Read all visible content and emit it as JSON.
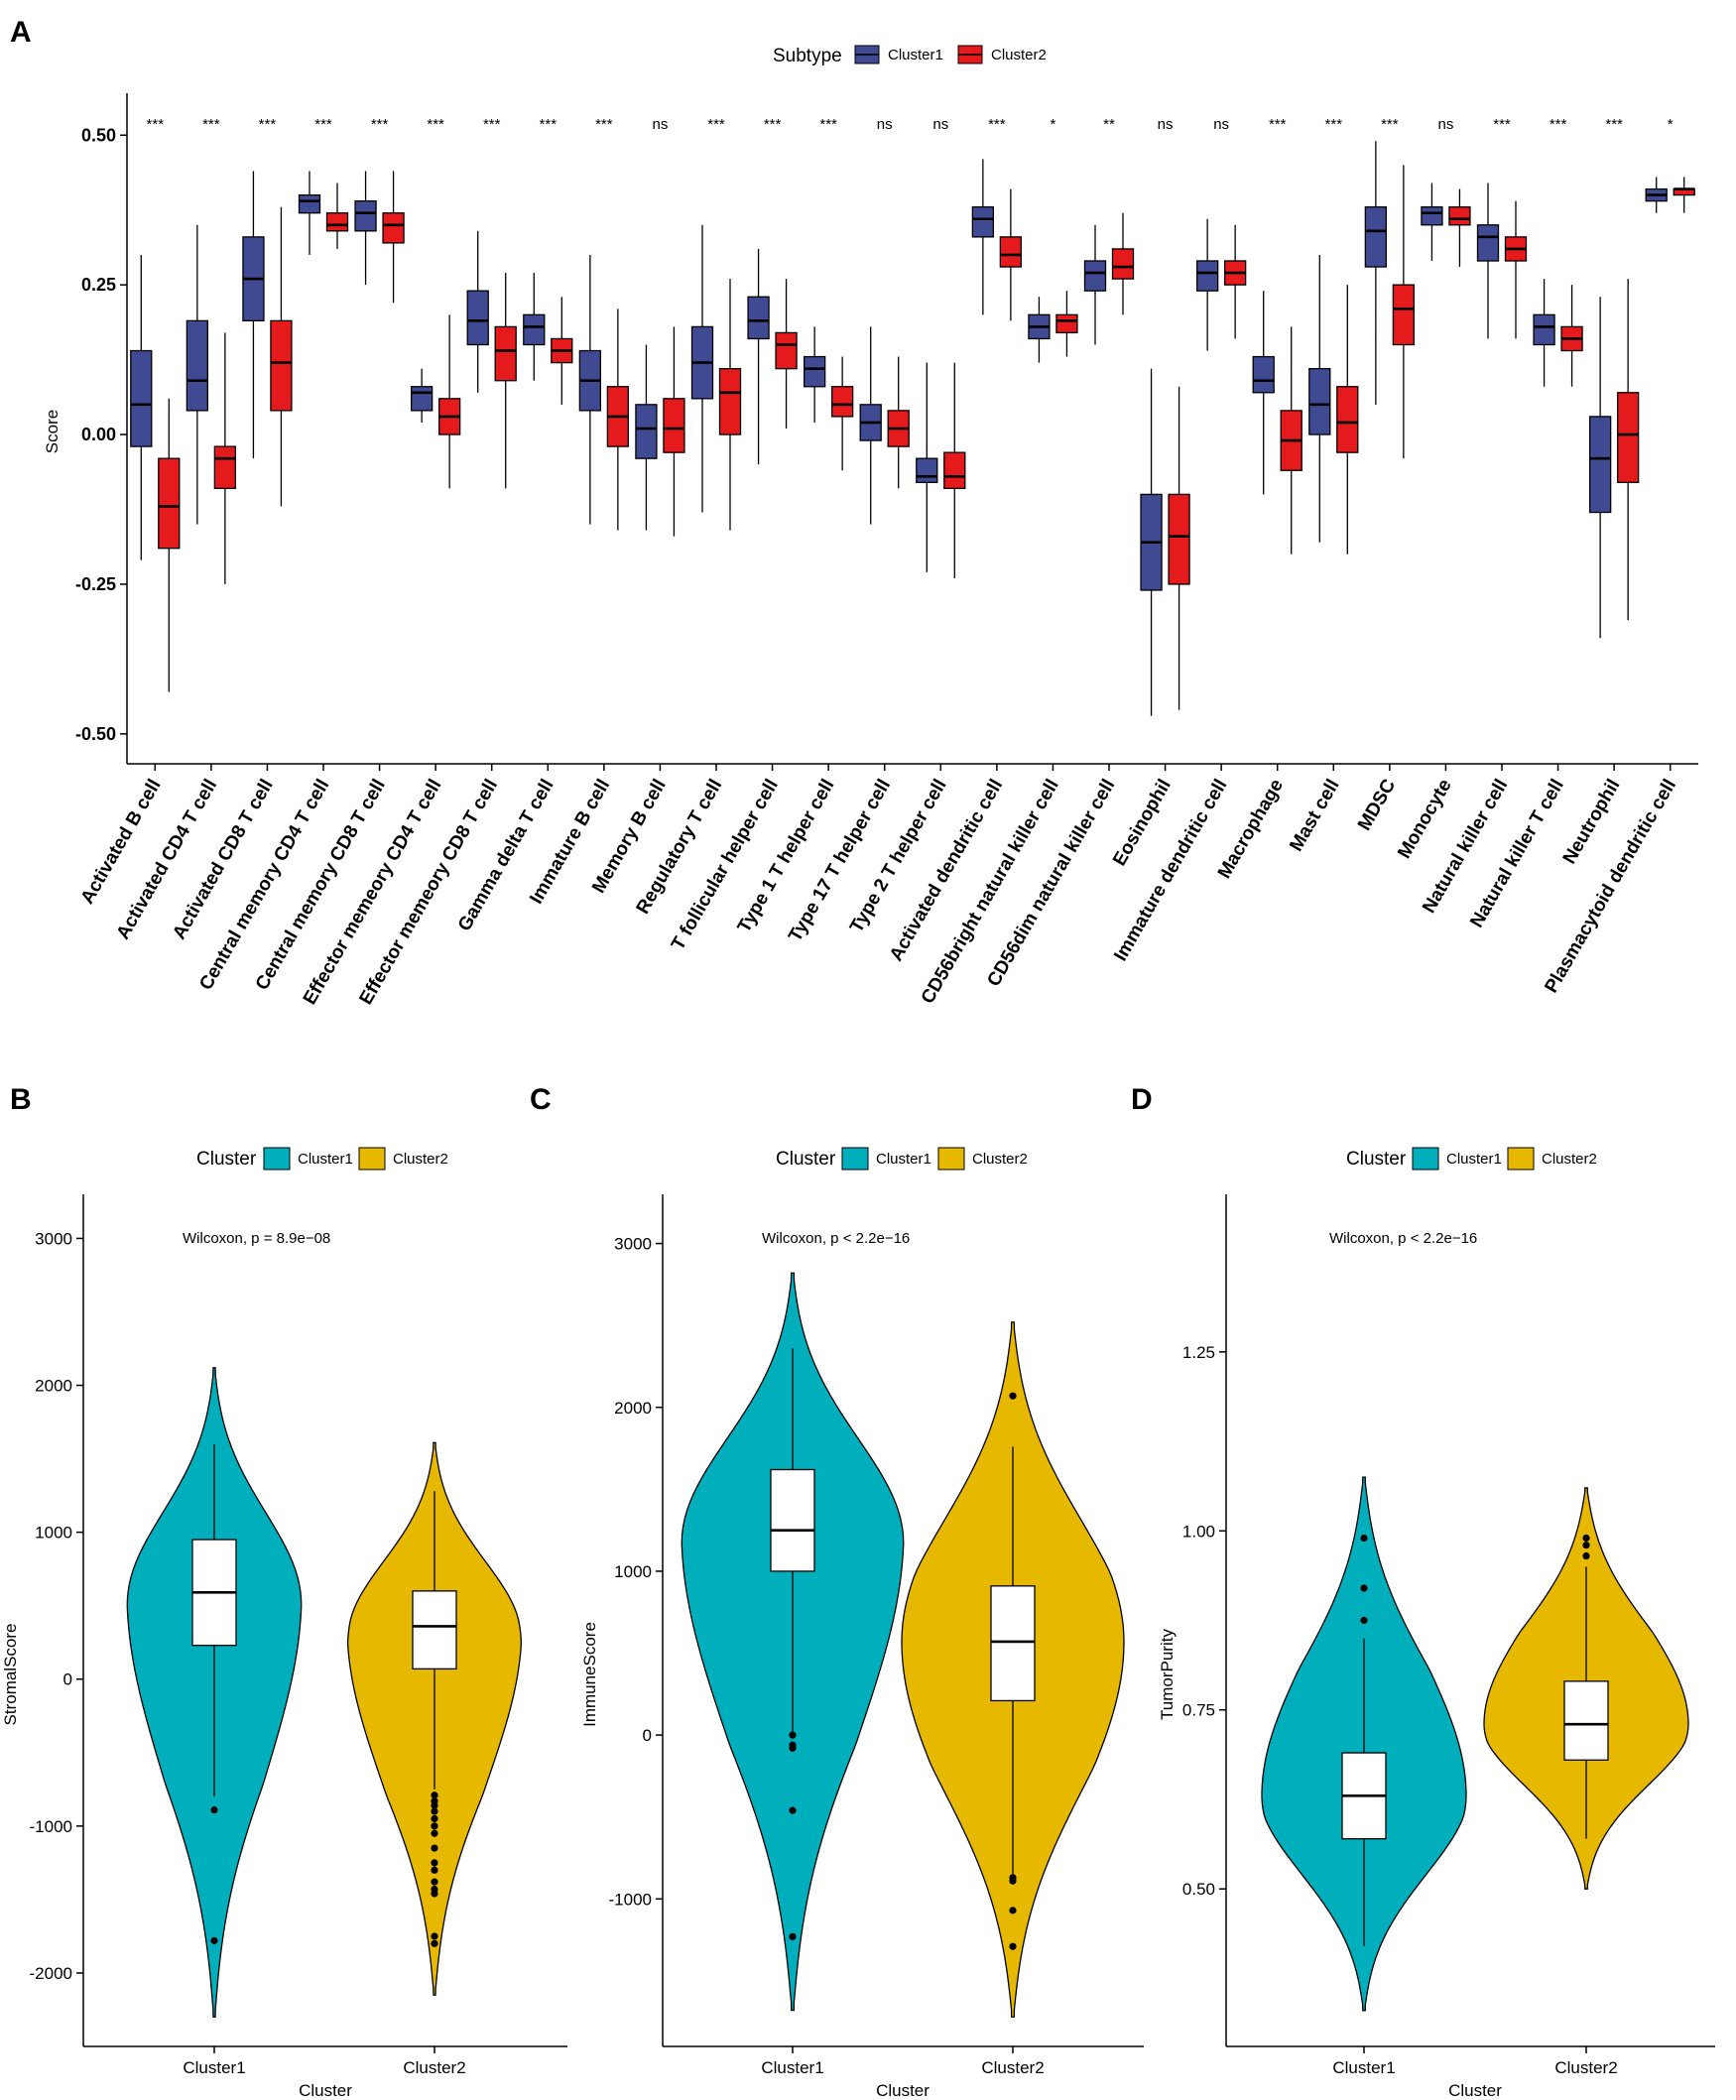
{
  "chart_data": [
    {
      "panel": "A",
      "type": "boxplot",
      "ylabel": "Score",
      "ylim": [
        -0.55,
        0.57
      ],
      "yticks": [
        "-0.50",
        "-0.25",
        "0.00",
        "0.25",
        "0.50"
      ],
      "legend": {
        "title": "Subtype",
        "entries": [
          "Cluster1",
          "Cluster2"
        ],
        "position": "top"
      },
      "colors": {
        "Cluster1": "#3F4A93",
        "Cluster2": "#E41A1C"
      },
      "categories": [
        "Activated B cell",
        "Activated CD4 T cell",
        "Activated CD8 T cell",
        "Central memory CD4 T cell",
        "Central memory CD8 T cell",
        "Effector memeory CD4 T cell",
        "Effector memeory CD8 T cell",
        "Gamma delta T cell",
        "Immature  B cell",
        "Memory B cell",
        "Regulatory T cell",
        "T follicular helper cell",
        "Type 1 T helper cell",
        "Type 17 T helper cell",
        "Type 2 T helper cell",
        "Activated dendritic cell",
        "CD56bright natural killer cell",
        "CD56dim natural killer cell",
        "Eosinophil",
        "Immature dendritic cell",
        "Macrophage",
        "Mast cell",
        "MDSC",
        "Monocyte",
        "Natural killer cell",
        "Natural killer T cell",
        "Neutrophil",
        "Plasmacytoid dendritic cell"
      ],
      "significance": [
        "***",
        "***",
        "***",
        "***",
        "***",
        "***",
        "***",
        "***",
        "***",
        "ns",
        "***",
        "***",
        "***",
        "ns",
        "ns",
        "***",
        "*",
        "**",
        "ns",
        "ns",
        "***",
        "***",
        "***",
        "ns",
        "***",
        "***",
        "***",
        "*"
      ],
      "series": [
        {
          "name": "Cluster1",
          "boxes": [
            [
              -0.21,
              -0.02,
              0.05,
              0.14,
              0.3
            ],
            [
              -0.15,
              0.04,
              0.09,
              0.19,
              0.35
            ],
            [
              -0.04,
              0.19,
              0.26,
              0.33,
              0.44
            ],
            [
              0.3,
              0.37,
              0.39,
              0.4,
              0.44
            ],
            [
              0.25,
              0.34,
              0.37,
              0.39,
              0.44
            ],
            [
              0.02,
              0.04,
              0.07,
              0.08,
              0.11
            ],
            [
              0.07,
              0.15,
              0.19,
              0.24,
              0.34
            ],
            [
              0.09,
              0.15,
              0.18,
              0.2,
              0.27
            ],
            [
              -0.15,
              0.04,
              0.09,
              0.14,
              0.3
            ],
            [
              -0.16,
              -0.04,
              0.01,
              0.05,
              0.15
            ],
            [
              -0.13,
              0.06,
              0.12,
              0.18,
              0.35
            ],
            [
              -0.05,
              0.16,
              0.19,
              0.23,
              0.31
            ],
            [
              0.02,
              0.08,
              0.11,
              0.13,
              0.18
            ],
            [
              -0.15,
              -0.01,
              0.02,
              0.05,
              0.18
            ],
            [
              -0.23,
              -0.08,
              -0.07,
              -0.04,
              0.12
            ],
            [
              0.2,
              0.33,
              0.36,
              0.38,
              0.46
            ],
            [
              0.12,
              0.16,
              0.18,
              0.2,
              0.23
            ],
            [
              0.15,
              0.24,
              0.27,
              0.29,
              0.35
            ],
            [
              -0.47,
              -0.26,
              -0.18,
              -0.1,
              0.11
            ],
            [
              0.14,
              0.24,
              0.27,
              0.29,
              0.36
            ],
            [
              -0.1,
              0.07,
              0.09,
              0.13,
              0.24
            ],
            [
              -0.18,
              0.0,
              0.05,
              0.11,
              0.3
            ],
            [
              0.05,
              0.28,
              0.34,
              0.38,
              0.49
            ],
            [
              0.29,
              0.35,
              0.37,
              0.38,
              0.42
            ],
            [
              0.16,
              0.29,
              0.33,
              0.35,
              0.42
            ],
            [
              0.08,
              0.15,
              0.18,
              0.2,
              0.26
            ],
            [
              -0.34,
              -0.13,
              -0.04,
              0.03,
              0.23
            ],
            [
              0.37,
              0.39,
              0.4,
              0.41,
              0.43
            ]
          ]
        },
        {
          "name": "Cluster2",
          "boxes": [
            [
              -0.43,
              -0.19,
              -0.12,
              -0.04,
              0.06
            ],
            [
              -0.25,
              -0.09,
              -0.04,
              -0.02,
              0.17
            ],
            [
              -0.12,
              0.04,
              0.12,
              0.19,
              0.38
            ],
            [
              0.31,
              0.34,
              0.35,
              0.37,
              0.42
            ],
            [
              0.22,
              0.32,
              0.35,
              0.37,
              0.44
            ],
            [
              -0.09,
              0.0,
              0.03,
              0.06,
              0.2
            ],
            [
              -0.09,
              0.09,
              0.14,
              0.18,
              0.27
            ],
            [
              0.05,
              0.12,
              0.14,
              0.16,
              0.23
            ],
            [
              -0.16,
              -0.02,
              0.03,
              0.08,
              0.21
            ],
            [
              -0.17,
              -0.03,
              0.01,
              0.06,
              0.18
            ],
            [
              -0.16,
              0.0,
              0.07,
              0.11,
              0.26
            ],
            [
              0.01,
              0.11,
              0.15,
              0.17,
              0.26
            ],
            [
              -0.06,
              0.03,
              0.05,
              0.08,
              0.13
            ],
            [
              -0.09,
              -0.02,
              0.01,
              0.04,
              0.13
            ],
            [
              -0.24,
              -0.09,
              -0.07,
              -0.03,
              0.12
            ],
            [
              0.19,
              0.28,
              0.3,
              0.33,
              0.41
            ],
            [
              0.13,
              0.17,
              0.19,
              0.2,
              0.24
            ],
            [
              0.2,
              0.26,
              0.28,
              0.31,
              0.37
            ],
            [
              -0.46,
              -0.25,
              -0.17,
              -0.1,
              0.08
            ],
            [
              0.16,
              0.25,
              0.27,
              0.29,
              0.35
            ],
            [
              -0.2,
              -0.06,
              -0.01,
              0.04,
              0.18
            ],
            [
              -0.2,
              -0.03,
              0.02,
              0.08,
              0.25
            ],
            [
              -0.04,
              0.15,
              0.21,
              0.25,
              0.45
            ],
            [
              0.28,
              0.35,
              0.36,
              0.38,
              0.41
            ],
            [
              0.16,
              0.29,
              0.31,
              0.33,
              0.39
            ],
            [
              0.08,
              0.14,
              0.16,
              0.18,
              0.25
            ],
            [
              -0.31,
              -0.08,
              0.0,
              0.07,
              0.26
            ],
            [
              0.37,
              0.4,
              0.41,
              0.41,
              0.43
            ]
          ]
        }
      ]
    },
    {
      "panel": "B",
      "type": "violin",
      "xlabel": "Cluster",
      "ylabel": "StromalScore",
      "ylim": [
        -2500,
        3300
      ],
      "yticks": [
        -2000,
        -1000,
        0,
        1000,
        2000,
        3000
      ],
      "categories": [
        "Cluster1",
        "Cluster2"
      ],
      "annotation": "Wilcoxon, p = 8.9e−08",
      "legend": {
        "title": "Cluster",
        "entries": [
          "Cluster1",
          "Cluster2"
        ],
        "position": "top"
      },
      "colors": {
        "Cluster1": "#00AFBB",
        "Cluster2": "#E7B800"
      },
      "violin_range": [
        [
          -2300,
          2120
        ],
        [
          -2150,
          1610
        ]
      ],
      "boxes": [
        [
          -800,
          230,
          590,
          950,
          1600
        ],
        [
          -750,
          70,
          360,
          600,
          1280
        ]
      ],
      "outliers": [
        [
          -890,
          -1780
        ],
        [
          -790,
          -830,
          -860,
          -900,
          -950,
          -1000,
          -1050,
          -1150,
          -1250,
          -1300,
          -1380,
          -1430,
          -1460,
          -1750,
          -1800
        ]
      ]
    },
    {
      "panel": "C",
      "type": "violin",
      "xlabel": "Cluster",
      "ylabel": "ImmuneScore",
      "ylim": [
        -1900,
        3300
      ],
      "yticks": [
        -1000,
        0,
        1000,
        2000,
        3000
      ],
      "categories": [
        "Cluster1",
        "Cluster2"
      ],
      "annotation": "Wilcoxon, p < 2.2e−16",
      "legend": {
        "title": "Cluster",
        "entries": [
          "Cluster1",
          "Cluster2"
        ],
        "position": "top"
      },
      "colors": {
        "Cluster1": "#00AFBB",
        "Cluster2": "#E7B800"
      },
      "violin_range": [
        [
          -1680,
          2820
        ],
        [
          -1720,
          2520
        ]
      ],
      "boxes": [
        [
          20,
          1000,
          1250,
          1620,
          2360
        ],
        [
          -850,
          210,
          570,
          910,
          1760
        ]
      ],
      "outliers": [
        [
          0,
          -60,
          -80,
          -460,
          -1230
        ],
        [
          2070,
          -870,
          -890,
          -1070,
          -1290
        ]
      ]
    },
    {
      "panel": "D",
      "type": "violin",
      "xlabel": "Cluster",
      "ylabel": "TumorPurity",
      "ylim": [
        0.28,
        1.47
      ],
      "yticks": [
        "0.50",
        "0.75",
        "1.00",
        "1.25"
      ],
      "categories": [
        "Cluster1",
        "Cluster2"
      ],
      "annotation": "Wilcoxon, p < 2.2e−16",
      "legend": {
        "title": "Cluster",
        "entries": [
          "Cluster1",
          "Cluster2"
        ],
        "position": "top"
      },
      "colors": {
        "Cluster1": "#00AFBB",
        "Cluster2": "#E7B800"
      },
      "violin_range": [
        [
          0.33,
          1.075
        ],
        [
          0.5,
          1.06
        ]
      ],
      "boxes": [
        [
          0.42,
          0.57,
          0.63,
          0.69,
          0.85
        ],
        [
          0.57,
          0.68,
          0.73,
          0.79,
          0.95
        ]
      ],
      "outliers": [
        [
          0.99,
          0.92,
          0.875
        ],
        [
          0.99,
          0.98,
          0.965
        ]
      ]
    }
  ]
}
